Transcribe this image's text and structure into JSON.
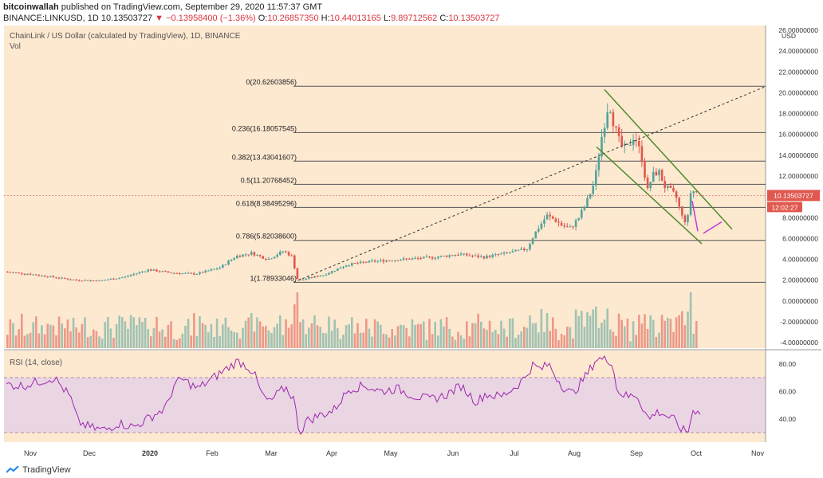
{
  "header": {
    "author": "bitcoinwallah",
    "published": "published on TradingView.com, September 29, 2020 11:57:37 GMT",
    "symbol": "BINANCE:LINKUSD, 1D",
    "last": "10.13503727",
    "change": "▼ −0.13958400 (−1.36%)",
    "open_label": "O:",
    "open": "10.26857350",
    "high_label": "H:",
    "high": "10.44013165",
    "low_label": "L:",
    "low": "9.89712562",
    "close_label": "C:",
    "close": "10.13503727",
    "pair_title": "ChainLink / US Dollar (calculated by TradingView), 1D, BINANCE",
    "vol_label": "Vol",
    "rsi_label": "RSI (14, close)"
  },
  "footer": {
    "brand": "TradingView"
  },
  "colors": {
    "bg": "#fde8d0",
    "rsi_band": "#ead5e3",
    "up": "#53a49a",
    "down": "#e0584e",
    "fib": "#555555",
    "channel": "#4c8c2b",
    "rsi_line": "#9c27b0",
    "projection": "#c03ed0"
  },
  "chart_data": {
    "type": "candlestick",
    "title": "ChainLink / US Dollar (calculated by TradingView), 1D, BINANCE",
    "y_axis": {
      "label": "USD",
      "range": [
        -5,
        26
      ],
      "ticks": [
        26,
        24,
        22,
        20,
        18,
        16,
        14,
        12,
        10,
        8,
        6,
        4,
        2,
        0,
        -2,
        -4
      ],
      "tick_format": "8 decimals"
    },
    "x_axis": {
      "ticks": [
        "Nov",
        "Dec",
        "2020",
        "Feb",
        "Mar",
        "Apr",
        "May",
        "Jun",
        "Jul",
        "Aug",
        "Sep",
        "Oct",
        "Nov"
      ]
    },
    "current_price": {
      "value": 10.13503727,
      "label": "10.13503727",
      "countdown": "12:02:27"
    },
    "price_path": [
      [
        0,
        2.8
      ],
      [
        30,
        2.6
      ],
      [
        60,
        2.3
      ],
      [
        90,
        2.0
      ],
      [
        120,
        1.95
      ],
      [
        150,
        2.3
      ],
      [
        180,
        3.0
      ],
      [
        210,
        2.7
      ],
      [
        240,
        2.6
      ],
      [
        270,
        3.2
      ],
      [
        290,
        4.3
      ],
      [
        310,
        4.6
      ],
      [
        330,
        4.0
      ],
      [
        350,
        4.8
      ],
      [
        360,
        4.3
      ],
      [
        368,
        1.9
      ],
      [
        380,
        2.2
      ],
      [
        400,
        2.5
      ],
      [
        430,
        3.5
      ],
      [
        460,
        3.8
      ],
      [
        500,
        4.0
      ],
      [
        540,
        4.2
      ],
      [
        570,
        4.5
      ],
      [
        600,
        4.2
      ],
      [
        630,
        4.6
      ],
      [
        655,
        5.0
      ],
      [
        665,
        6.5
      ],
      [
        680,
        8.2
      ],
      [
        690,
        7.8
      ],
      [
        700,
        7.2
      ],
      [
        710,
        7.0
      ],
      [
        720,
        8.0
      ],
      [
        730,
        9.5
      ],
      [
        740,
        11.5
      ],
      [
        748,
        15.5
      ],
      [
        758,
        19.2
      ],
      [
        764,
        17.0
      ],
      [
        772,
        15.0
      ],
      [
        780,
        14.5
      ],
      [
        790,
        16.0
      ],
      [
        800,
        13.5
      ],
      [
        806,
        10.5
      ],
      [
        812,
        12.0
      ],
      [
        820,
        12.5
      ],
      [
        828,
        11.0
      ],
      [
        836,
        10.5
      ],
      [
        842,
        10.0
      ],
      [
        850,
        8.0
      ],
      [
        856,
        7.5
      ],
      [
        860,
        10.4
      ],
      [
        866,
        10.6
      ],
      [
        872,
        10.1
      ]
    ],
    "fibonacci": [
      {
        "level": "0",
        "value": 20.62603856,
        "label": "0(20.62603856)"
      },
      {
        "level": "0.236",
        "value": 16.18057545,
        "label": "0.236(16.18057545)"
      },
      {
        "level": "0.382",
        "value": 13.43041607,
        "label": "0.382(13.43041607)"
      },
      {
        "level": "0.5",
        "value": 11.20768452,
        "label": "0.5(11.20768452)"
      },
      {
        "level": "0.618",
        "value": 8.98495296,
        "label": "0.618(8.98495296)"
      },
      {
        "level": "0.786",
        "value": 5.820386,
        "label": "0.786(5.82038600)"
      },
      {
        "level": "1",
        "value": 1.78933046,
        "label": "1(1.78933046)"
      }
    ],
    "rsi": {
      "label": "RSI (14, close)",
      "ticks": [
        80,
        60,
        40
      ],
      "band": [
        30,
        70
      ],
      "values": [
        [
          0,
          65
        ],
        [
          20,
          64
        ],
        [
          40,
          67
        ],
        [
          60,
          70
        ],
        [
          80,
          56
        ],
        [
          90,
          38
        ],
        [
          100,
          35
        ],
        [
          110,
          33
        ],
        [
          125,
          32
        ],
        [
          140,
          37
        ],
        [
          160,
          34
        ],
        [
          180,
          41
        ],
        [
          200,
          48
        ],
        [
          210,
          64
        ],
        [
          220,
          69
        ],
        [
          240,
          62
        ],
        [
          260,
          70
        ],
        [
          280,
          78
        ],
        [
          290,
          82
        ],
        [
          300,
          79
        ],
        [
          310,
          74
        ],
        [
          320,
          58
        ],
        [
          330,
          52
        ],
        [
          340,
          58
        ],
        [
          350,
          63
        ],
        [
          360,
          55
        ],
        [
          368,
          29
        ],
        [
          375,
          38
        ],
        [
          390,
          42
        ],
        [
          410,
          46
        ],
        [
          430,
          62
        ],
        [
          450,
          64
        ],
        [
          470,
          60
        ],
        [
          490,
          62
        ],
        [
          510,
          57
        ],
        [
          530,
          54
        ],
        [
          550,
          57
        ],
        [
          570,
          64
        ],
        [
          590,
          52
        ],
        [
          600,
          58
        ],
        [
          620,
          56
        ],
        [
          640,
          64
        ],
        [
          650,
          70
        ],
        [
          660,
          79
        ],
        [
          670,
          76
        ],
        [
          680,
          80
        ],
        [
          690,
          70
        ],
        [
          700,
          62
        ],
        [
          710,
          58
        ],
        [
          720,
          66
        ],
        [
          730,
          74
        ],
        [
          740,
          84
        ],
        [
          750,
          83
        ],
        [
          760,
          82
        ],
        [
          765,
          62
        ],
        [
          772,
          58
        ],
        [
          780,
          56
        ],
        [
          790,
          58
        ],
        [
          800,
          46
        ],
        [
          806,
          39
        ],
        [
          812,
          44
        ],
        [
          820,
          45
        ],
        [
          828,
          42
        ],
        [
          836,
          40
        ],
        [
          842,
          35
        ],
        [
          850,
          31
        ],
        [
          855,
          31
        ],
        [
          860,
          45
        ],
        [
          866,
          47
        ],
        [
          872,
          45
        ]
      ]
    },
    "annotations": [
      "descending channel",
      "fib retracement",
      "trend line",
      "projection arrow"
    ]
  }
}
